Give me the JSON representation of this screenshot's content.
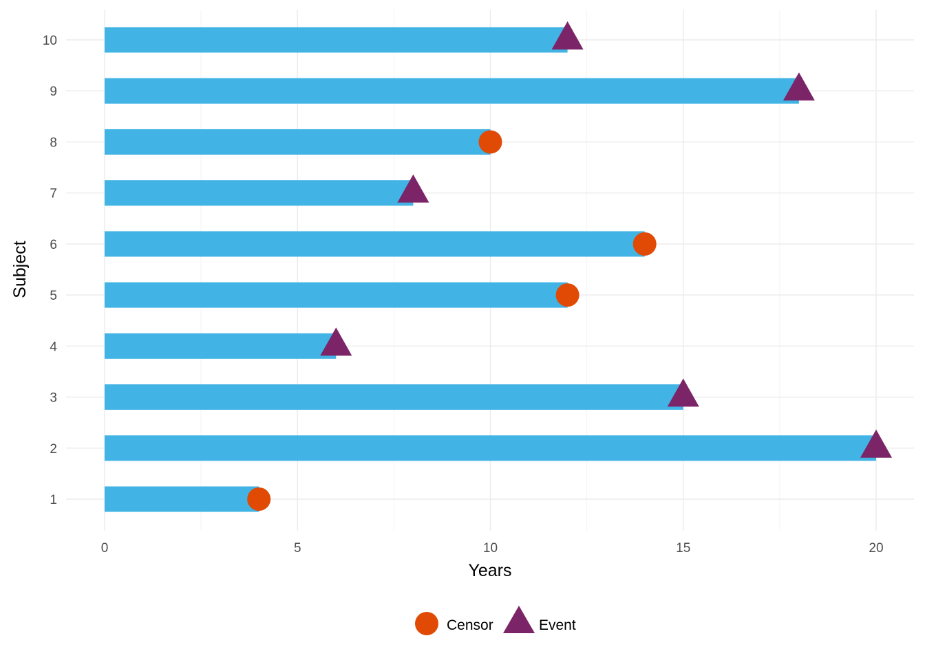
{
  "chart_data": {
    "type": "bar",
    "orientation": "horizontal",
    "xlabel": "Years",
    "ylabel": "Subject",
    "xlim": [
      0,
      20
    ],
    "xticks": [
      "0",
      "5",
      "10",
      "15",
      "20"
    ],
    "categories": [
      "1",
      "2",
      "3",
      "4",
      "5",
      "6",
      "7",
      "8",
      "9",
      "10"
    ],
    "values": [
      4,
      20,
      15,
      6,
      12,
      14,
      8,
      10,
      18,
      12
    ],
    "status": [
      "Censor",
      "Event",
      "Event",
      "Event",
      "Censor",
      "Censor",
      "Event",
      "Censor",
      "Event",
      "Event"
    ],
    "bar_color": "#41b3e4",
    "grid": true,
    "legend": {
      "position": "bottom",
      "entries": [
        {
          "label": "Censor",
          "shape": "circle",
          "color": "#e04a04"
        },
        {
          "label": "Event",
          "shape": "triangle",
          "color": "#7b2468"
        }
      ]
    }
  }
}
